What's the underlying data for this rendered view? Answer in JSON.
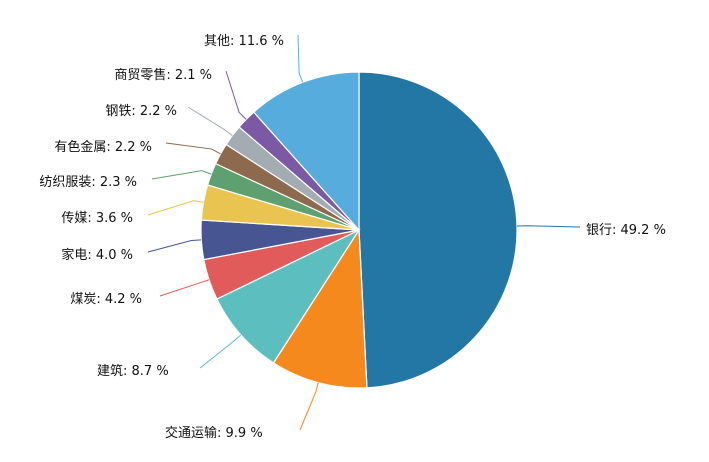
{
  "chart_data": {
    "type": "pie",
    "title": "",
    "slices": [
      {
        "name": "银行",
        "value": 49.2,
        "label": "银行: 49.2 %",
        "color": "#2377A4"
      },
      {
        "name": "交通运输",
        "value": 9.9,
        "label": "交通运输: 9.9 %",
        "color": "#F6891D"
      },
      {
        "name": "建筑",
        "value": 8.7,
        "label": "建筑: 8.7 %",
        "color": "#5DBEC0"
      },
      {
        "name": "煤炭",
        "value": 4.2,
        "label": "煤炭: 4.2 %",
        "color": "#E15B5A"
      },
      {
        "name": "家电",
        "value": 4.0,
        "label": "家电: 4.0 %",
        "color": "#475692"
      },
      {
        "name": "传媒",
        "value": 3.6,
        "label": "传媒: 3.6 %",
        "color": "#E9C451"
      },
      {
        "name": "纺织服装",
        "value": 2.3,
        "label": "纺织服装: 2.3 %",
        "color": "#5EA06F"
      },
      {
        "name": "有色金属",
        "value": 2.2,
        "label": "有色金属: 2.2 %",
        "color": "#8D6A4E"
      },
      {
        "name": "钢铁",
        "value": 2.2,
        "label": "钢铁: 2.2 %",
        "color": "#A3ABB3"
      },
      {
        "name": "商贸零售",
        "value": 2.1,
        "label": "商贸零售: 2.1 %",
        "color": "#7B59A5"
      },
      {
        "name": "其他",
        "value": 11.6,
        "label": "其他: 11.6 %",
        "color": "#55ACDD"
      }
    ]
  }
}
